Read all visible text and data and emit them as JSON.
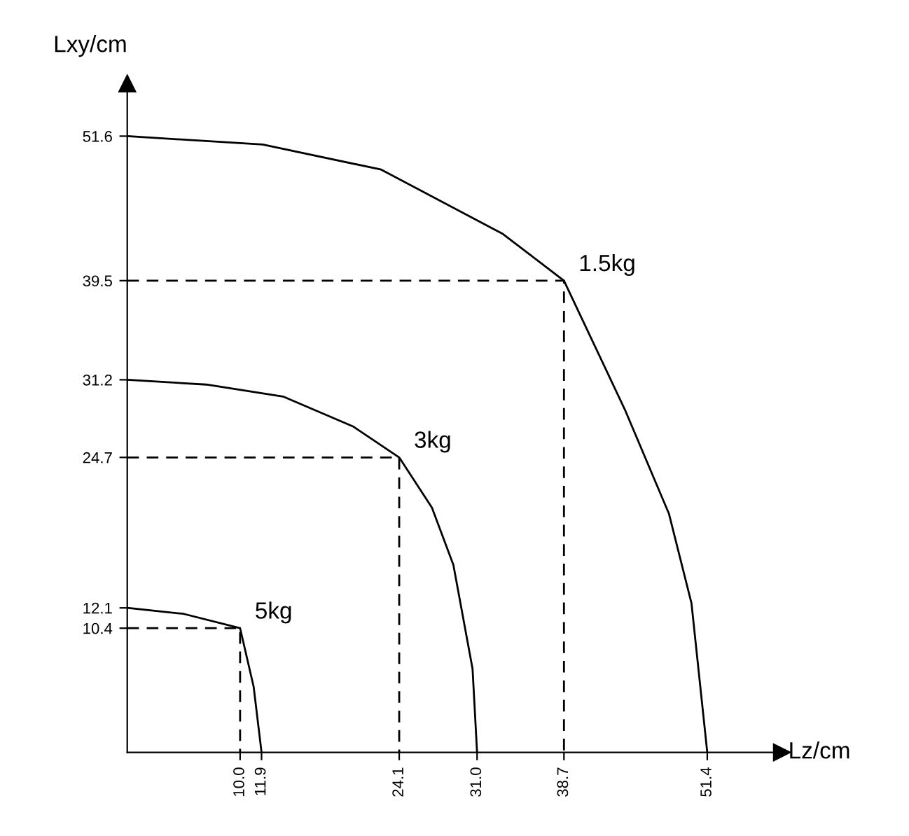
{
  "chart_data": {
    "type": "line",
    "xlabel": "Lz/cm",
    "ylabel": "Lxy/cm",
    "xlim": [
      0,
      58
    ],
    "ylim": [
      0,
      56
    ],
    "xticks": [
      {
        "value": 10.0,
        "label": "10.0"
      },
      11.9,
      24.1,
      {
        "value": 31.0,
        "label": "31.0"
      },
      38.7,
      51.4
    ],
    "yticks": [
      10.4,
      12.1,
      24.7,
      31.2,
      39.5,
      51.6
    ],
    "grid": false,
    "legend": false,
    "marker": "none",
    "series": [
      {
        "name": "1.5kg",
        "color": "#000000",
        "line_style": "solid",
        "x": [
          0,
          12,
          22.5,
          33.3,
          38.7,
          44.1,
          48,
          50,
          51.4
        ],
        "values": [
          51.6,
          50.9,
          48.8,
          43.4,
          39.5,
          28.7,
          20,
          12.5,
          0
        ]
      },
      {
        "name": "3kg",
        "color": "#000000",
        "line_style": "solid",
        "x": [
          0,
          7,
          13.8,
          20,
          24.1,
          27,
          28.9,
          30.6,
          31.0
        ],
        "values": [
          31.2,
          30.8,
          29.8,
          27.3,
          24.7,
          20.5,
          15.7,
          7.0,
          0
        ]
      },
      {
        "name": "5kg",
        "color": "#000000",
        "line_style": "solid",
        "x": [
          0,
          5,
          10.0,
          11.2,
          11.9
        ],
        "values": [
          12.1,
          11.6,
          10.4,
          5.5,
          0
        ]
      },
      {
        "color": "#000000",
        "line_style": "dashed",
        "x": [
          0,
          38.7,
          38.7
        ],
        "values": [
          39.5,
          39.5,
          0
        ]
      },
      {
        "color": "#000000",
        "line_style": "dashed",
        "x": [
          0,
          24.1,
          24.1
        ],
        "values": [
          24.7,
          24.7,
          0
        ]
      },
      {
        "color": "#000000",
        "line_style": "dashed",
        "x": [
          0,
          10.0,
          10.0
        ],
        "values": [
          10.4,
          10.4,
          0
        ]
      }
    ]
  }
}
